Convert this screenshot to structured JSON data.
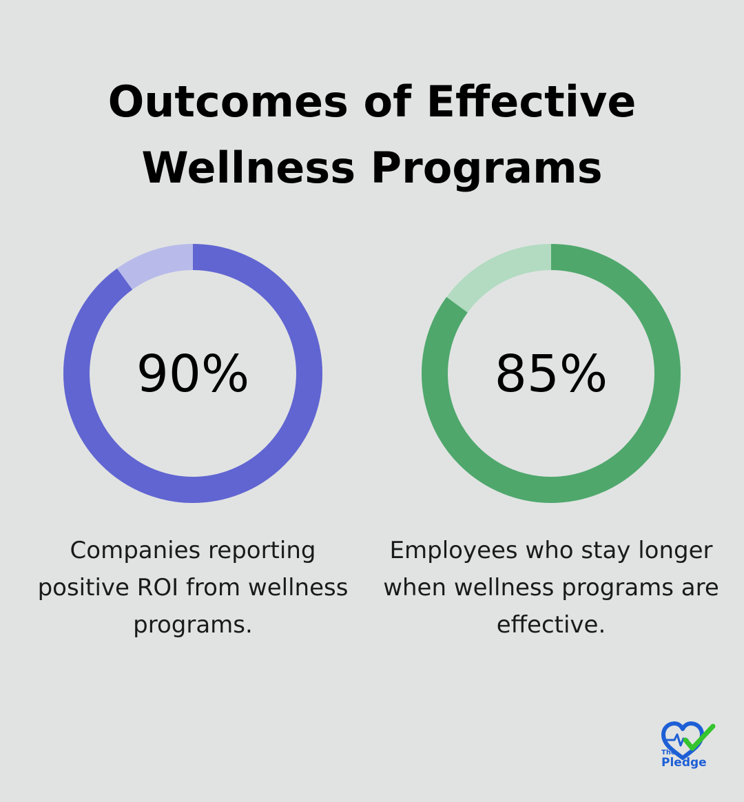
{
  "title": "Outcomes of Effective Wellness Programs",
  "chart_data": [
    {
      "type": "pie",
      "value": 90,
      "label": "90%",
      "description": "Companies reporting positive ROI from wellness programs.",
      "color": "#6165d1",
      "track_color": "#b8bbea"
    },
    {
      "type": "pie",
      "value": 85,
      "label": "85%",
      "description": "Employees who stay longer when wellness programs are effective.",
      "color": "#4fa76c",
      "track_color": "#b2dbc1"
    }
  ],
  "logo": {
    "the": "The",
    "pledge": "Pledge",
    "icon": "heart-check-icon",
    "color_primary": "#1e5fd6",
    "color_check": "#35c42e"
  }
}
